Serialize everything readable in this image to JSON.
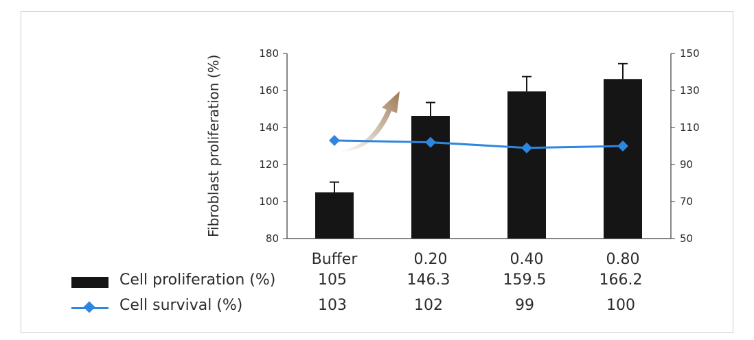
{
  "chart_data": {
    "type": "bar",
    "ylabel": "Fibroblast proliferation (%)",
    "categories": [
      "Buffer",
      "0.20",
      "0.40",
      "0.80"
    ],
    "ylim": [
      80,
      180
    ],
    "y_ticks": [
      "80",
      "100",
      "120",
      "140",
      "160",
      "180"
    ],
    "y2lim": [
      50,
      150
    ],
    "y2_ticks": [
      "50",
      "70",
      "90",
      "110",
      "130",
      "150"
    ],
    "series": [
      {
        "name": "Cell proliferation (%)",
        "kind": "bar",
        "axis": "left",
        "color": "#151515",
        "values": [
          105,
          146.3,
          159.5,
          166.2
        ],
        "value_labels": [
          "105",
          "146.3",
          "159.5",
          "166.2"
        ],
        "error_upper": [
          110.5,
          153.5,
          167.5,
          174.5
        ]
      },
      {
        "name": "Cell survival (%)",
        "kind": "line",
        "axis": "right",
        "color": "#2e86de",
        "values": [
          103,
          102,
          99,
          100
        ],
        "value_labels": [
          "103",
          "102",
          "99",
          "100"
        ]
      }
    ],
    "annotation": {
      "type": "arrow",
      "color": "#9c7a55"
    },
    "grid": false,
    "legend": "table-below"
  }
}
